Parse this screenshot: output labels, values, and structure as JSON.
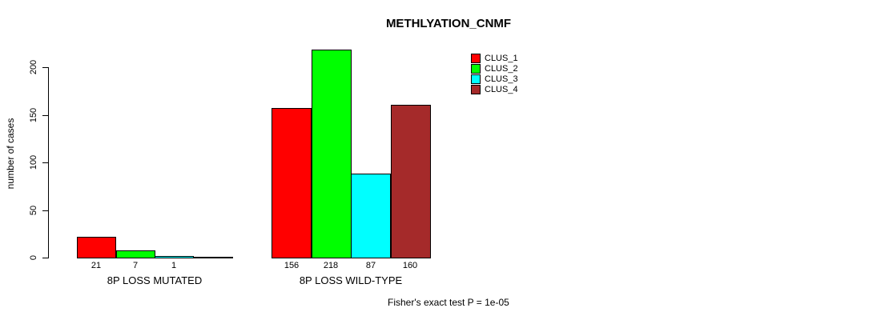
{
  "chart_data": {
    "type": "bar",
    "title": "METHLYATION_CNMF",
    "xlabel": "",
    "ylabel": "number of cases",
    "ylim": [
      0,
      218
    ],
    "yticks": [
      0,
      50,
      100,
      150,
      200
    ],
    "grid": false,
    "background": "#ffffff",
    "bar_border_color": "#000000",
    "categories": [
      "8P LOSS MUTATED",
      "8P LOSS WILD-TYPE"
    ],
    "series": [
      {
        "name": "CLUS_1",
        "color": "#FF0000",
        "values": [
          21,
          156
        ]
      },
      {
        "name": "CLUS_2",
        "color": "#00FF00",
        "values": [
          7,
          218
        ]
      },
      {
        "name": "CLUS_3",
        "color": "#00FFFF",
        "values": [
          1,
          87
        ]
      },
      {
        "name": "CLUS_4",
        "color": "#A52A2A",
        "values": [
          0,
          160
        ]
      }
    ],
    "value_labels": [
      [
        "21",
        "7",
        "1",
        ""
      ],
      [
        "156",
        "218",
        "87",
        "160"
      ]
    ],
    "legend": {
      "position": "top-right",
      "entries": [
        "CLUS_1",
        "CLUS_2",
        "CLUS_3",
        "CLUS_4"
      ]
    },
    "annotation": "Fisher's exact test P = 1e-05"
  }
}
